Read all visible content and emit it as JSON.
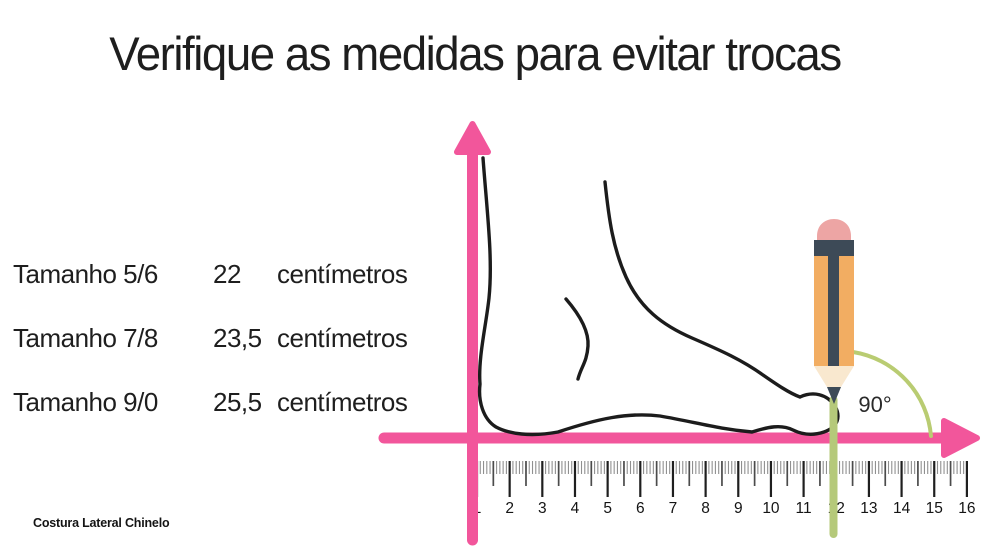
{
  "title": "Verifique as medidas para evitar trocas",
  "size_table": {
    "rows": [
      {
        "label": "Tamanho 5/6",
        "value": "22",
        "unit": "centímetros"
      },
      {
        "label": "Tamanho 7/8",
        "value": "23,5",
        "unit": "centímetros"
      },
      {
        "label": "Tamanho 9/0",
        "value": "25,5",
        "unit": "centímetros"
      }
    ]
  },
  "diagram": {
    "angle_label": "90°",
    "ruler": {
      "numbers": [
        "1",
        "2",
        "3",
        "4",
        "5",
        "6",
        "7",
        "8",
        "9",
        "10",
        "11",
        "12",
        "13",
        "14",
        "15",
        "16"
      ]
    }
  },
  "footer": "Costura Lateral Chinelo",
  "colors": {
    "pink": "#f2569b",
    "green_line": "#b5c97a",
    "green_arc": "#b9cc72",
    "outline": "#1c1c1c",
    "pencil_body": "#f2ad62",
    "pencil_dark": "#3d4a57",
    "eraser": "#eda5a4",
    "wood": "#f9e8cf",
    "text": "#1e1e1e"
  }
}
